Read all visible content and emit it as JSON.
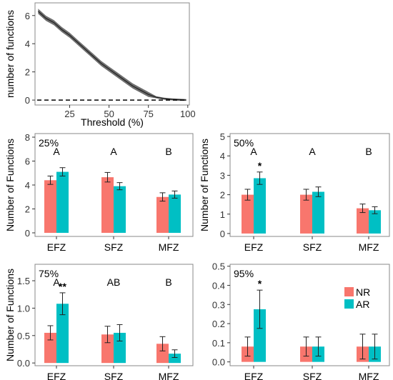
{
  "colors": {
    "NR": "#F8766D",
    "AR": "#00BFC4",
    "band": "#555555",
    "axis": "#333333",
    "frame": "#888888"
  },
  "chart_data": [
    {
      "type": "line",
      "xlabel": "Threshold (%)",
      "ylabel": "number of functions",
      "xlim": [
        3,
        101
      ],
      "ylim": [
        -0.35,
        6.9
      ],
      "xticks": [
        25,
        50,
        75,
        100
      ],
      "yticks": [
        0,
        2,
        4,
        6
      ],
      "reference_line": {
        "y": 0,
        "style": "dashed"
      },
      "series": [
        {
          "x": [
            5,
            10,
            15,
            20,
            25,
            30,
            35,
            40,
            45,
            50,
            55,
            60,
            65,
            70,
            75,
            80,
            85,
            90,
            95,
            99
          ],
          "values": [
            6.3,
            5.8,
            5.5,
            5.0,
            4.6,
            4.1,
            3.6,
            3.1,
            2.6,
            2.2,
            1.8,
            1.4,
            1.0,
            0.7,
            0.4,
            0.2,
            0.1,
            0.05,
            0.02,
            0.0
          ],
          "band": 0.18
        }
      ]
    },
    {
      "type": "bar",
      "annotation": "25%",
      "categories": [
        "EFZ",
        "SFZ",
        "MFZ"
      ],
      "group_letters": [
        "A",
        "A",
        "B"
      ],
      "ylabel": "Number of Functions",
      "ylim": [
        -0.3,
        8.3
      ],
      "yticks": [
        0,
        2,
        4,
        6,
        8
      ],
      "series": [
        {
          "name": "NR",
          "values": [
            4.4,
            4.65,
            3.0
          ],
          "errors": [
            0.35,
            0.4,
            0.35
          ]
        },
        {
          "name": "AR",
          "values": [
            5.1,
            3.9,
            3.2
          ],
          "errors": [
            0.35,
            0.3,
            0.3
          ]
        }
      ],
      "significance": [
        {
          "category": "EFZ",
          "label": ""
        }
      ]
    },
    {
      "type": "bar",
      "annotation": "50%",
      "categories": [
        "EFZ",
        "SFZ",
        "MFZ"
      ],
      "group_letters": [
        "A",
        "A",
        "B"
      ],
      "ylabel": "Number of Functions",
      "ylim": [
        -0.15,
        5.15
      ],
      "yticks": [
        0,
        1,
        2,
        3,
        4,
        5
      ],
      "series": [
        {
          "name": "NR",
          "values": [
            2.0,
            2.0,
            1.3
          ],
          "errors": [
            0.28,
            0.28,
            0.22
          ]
        },
        {
          "name": "AR",
          "values": [
            2.85,
            2.15,
            1.2
          ],
          "errors": [
            0.32,
            0.25,
            0.18
          ]
        }
      ],
      "significance": [
        {
          "category": "EFZ",
          "label": "*"
        }
      ]
    },
    {
      "type": "bar",
      "annotation": "75%",
      "categories": [
        "EFZ",
        "SFZ",
        "MFZ"
      ],
      "group_letters": [
        "A",
        "AB",
        "B"
      ],
      "ylabel": "Number of Functions",
      "ylim": [
        -0.05,
        1.8
      ],
      "yticks": [
        0.0,
        0.5,
        1.0,
        1.5
      ],
      "series": [
        {
          "name": "NR",
          "values": [
            0.55,
            0.52,
            0.35
          ],
          "errors": [
            0.13,
            0.15,
            0.13
          ]
        },
        {
          "name": "AR",
          "values": [
            1.08,
            0.55,
            0.17
          ],
          "errors": [
            0.2,
            0.15,
            0.07
          ]
        }
      ],
      "significance": [
        {
          "category": "EFZ",
          "label": "**"
        }
      ]
    },
    {
      "type": "bar",
      "annotation": "95%",
      "categories": [
        "EFZ",
        "SFZ",
        "MFZ"
      ],
      "group_letters": [
        "",
        "",
        ""
      ],
      "ylabel": "",
      "ylim": [
        -0.02,
        0.51
      ],
      "yticks": [
        0.0,
        0.1,
        0.2,
        0.3,
        0.4,
        0.5
      ],
      "series": [
        {
          "name": "NR",
          "values": [
            0.08,
            0.08,
            0.08
          ],
          "errors": [
            0.05,
            0.05,
            0.065
          ]
        },
        {
          "name": "AR",
          "values": [
            0.275,
            0.08,
            0.08
          ],
          "errors": [
            0.1,
            0.05,
            0.065
          ]
        }
      ],
      "significance": [
        {
          "category": "EFZ",
          "label": "*"
        }
      ],
      "legend": {
        "placement": "top-right",
        "entries": [
          "NR",
          "AR"
        ]
      }
    }
  ]
}
